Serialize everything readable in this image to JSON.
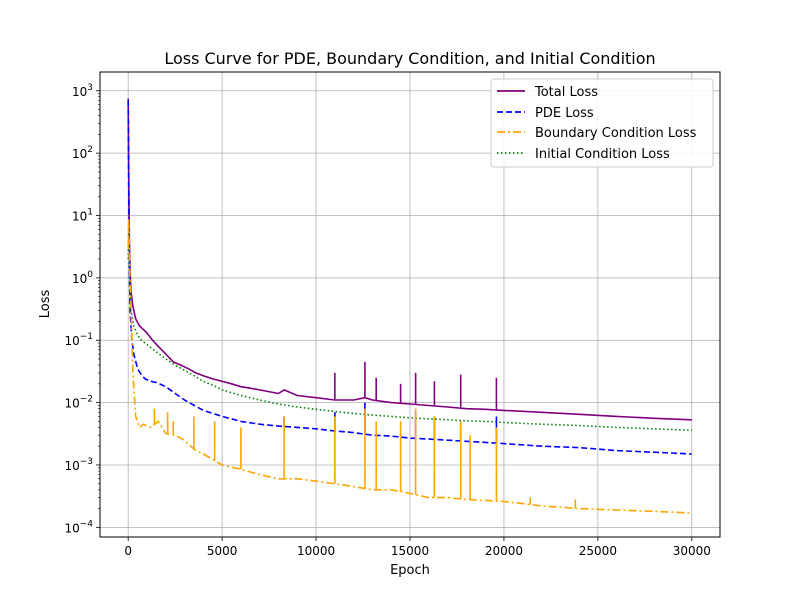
{
  "chart_data": {
    "type": "line",
    "title": "Loss Curve for PDE, Boundary Condition, and Initial Condition",
    "xlabel": "Epoch",
    "ylabel": "Loss",
    "xlim": [
      -1500,
      31500
    ],
    "ylim": [
      7e-05,
      2000
    ],
    "yscale": "log",
    "grid": true,
    "legend_position": "top-right",
    "x_ticks": [
      0,
      5000,
      10000,
      15000,
      20000,
      25000,
      30000
    ],
    "x_tick_labels": [
      "0",
      "5000",
      "10000",
      "15000",
      "20000",
      "25000",
      "30000"
    ],
    "y_ticks": [
      0.0001,
      0.001,
      0.01,
      0.1,
      1,
      10,
      100,
      1000
    ],
    "y_tick_labels": [
      {
        "base": "10",
        "exp": "−4"
      },
      {
        "base": "10",
        "exp": "−3"
      },
      {
        "base": "10",
        "exp": "−2"
      },
      {
        "base": "10",
        "exp": "−1"
      },
      {
        "base": "10",
        "exp": "0"
      },
      {
        "base": "10",
        "exp": "1"
      },
      {
        "base": "10",
        "exp": "2"
      },
      {
        "base": "10",
        "exp": "3"
      }
    ],
    "series": [
      {
        "name": "Total Loss",
        "color": "#800080",
        "style": "solid",
        "x": [
          0,
          30,
          60,
          100,
          150,
          250,
          400,
          600,
          800,
          1000,
          1300,
          1600,
          2000,
          2400,
          2800,
          3200,
          3600,
          4000,
          4500,
          5000,
          5500,
          6000,
          6500,
          7000,
          8000,
          8300,
          9000,
          10000,
          11000,
          12000,
          12600,
          13000,
          14000,
          15000,
          16000,
          17000,
          18000,
          19000,
          20000,
          22000,
          24000,
          26000,
          28000,
          30000
        ],
        "y": [
          750,
          50,
          5,
          1.2,
          0.6,
          0.35,
          0.22,
          0.17,
          0.15,
          0.13,
          0.1,
          0.08,
          0.06,
          0.045,
          0.04,
          0.035,
          0.03,
          0.027,
          0.024,
          0.022,
          0.02,
          0.018,
          0.017,
          0.016,
          0.014,
          0.016,
          0.013,
          0.012,
          0.011,
          0.011,
          0.012,
          0.011,
          0.01,
          0.0095,
          0.009,
          0.0085,
          0.008,
          0.0078,
          0.0075,
          0.007,
          0.0065,
          0.006,
          0.0056,
          0.0053
        ]
      },
      {
        "name": "PDE Loss",
        "color": "#0000ff",
        "style": "dashed",
        "x": [
          0,
          30,
          60,
          100,
          200,
          300,
          500,
          700,
          900,
          1200,
          1500,
          2000,
          2500,
          3000,
          4000,
          5000,
          6000,
          7000,
          8000,
          9000,
          10000,
          11000,
          12000,
          13000,
          14000,
          15000,
          16000,
          17000,
          18000,
          19000,
          20000,
          22000,
          24000,
          26000,
          28000,
          30000
        ],
        "y": [
          700,
          30,
          2,
          0.3,
          0.1,
          0.06,
          0.035,
          0.028,
          0.024,
          0.022,
          0.021,
          0.018,
          0.014,
          0.011,
          0.0075,
          0.006,
          0.005,
          0.0045,
          0.0042,
          0.004,
          0.0038,
          0.0035,
          0.0033,
          0.003,
          0.0029,
          0.0027,
          0.0026,
          0.0025,
          0.0024,
          0.0023,
          0.0022,
          0.002,
          0.0019,
          0.0017,
          0.0016,
          0.0015
        ]
      },
      {
        "name": "Boundary Condition Loss",
        "color": "#ffa500",
        "style": "dashdot",
        "x": [
          0,
          30,
          80,
          150,
          250,
          400,
          600,
          800,
          1200,
          1600,
          2000,
          2500,
          3000,
          3500,
          4000,
          5000,
          6000,
          7000,
          8000,
          9000,
          10000,
          11000,
          12000,
          13000,
          14000,
          15000,
          16000,
          17000,
          18000,
          19000,
          20000,
          21000,
          22000,
          23000,
          24000,
          26000,
          28000,
          30000
        ],
        "y": [
          3,
          9,
          1.2,
          0.35,
          0.03,
          0.006,
          0.004,
          0.0045,
          0.004,
          0.005,
          0.0032,
          0.003,
          0.0025,
          0.0018,
          0.0015,
          0.001,
          0.00085,
          0.0007,
          0.0006,
          0.0006,
          0.00055,
          0.0005,
          0.00045,
          0.0004,
          0.0004,
          0.00035,
          0.0003,
          0.0003,
          0.00028,
          0.00027,
          0.00026,
          0.00024,
          0.00022,
          0.00021,
          0.0002,
          0.00019,
          0.00018,
          0.00017
        ]
      },
      {
        "name": "Initial Condition Loss",
        "color": "#008000",
        "style": "dotted",
        "x": [
          0,
          30,
          80,
          150,
          300,
          500,
          700,
          1000,
          1500,
          2000,
          2500,
          3000,
          3500,
          4000,
          4500,
          5000,
          6000,
          7000,
          8000,
          9000,
          10000,
          11000,
          12000,
          13000,
          14000,
          15000,
          16000,
          17000,
          18000,
          19000,
          20000,
          22000,
          24000,
          26000,
          28000,
          30000
        ],
        "y": [
          2,
          5,
          0.6,
          0.3,
          0.17,
          0.12,
          0.1,
          0.085,
          0.065,
          0.05,
          0.04,
          0.033,
          0.027,
          0.022,
          0.019,
          0.016,
          0.013,
          0.011,
          0.0095,
          0.0085,
          0.0078,
          0.0072,
          0.0067,
          0.0063,
          0.006,
          0.0057,
          0.0055,
          0.0053,
          0.0051,
          0.005,
          0.0048,
          0.0045,
          0.0043,
          0.004,
          0.0038,
          0.0036
        ]
      }
    ],
    "spikes": [
      {
        "series": 0,
        "x": 8300,
        "peak": 0.016
      },
      {
        "series": 0,
        "x": 11000,
        "peak": 0.03
      },
      {
        "series": 0,
        "x": 12600,
        "peak": 0.045
      },
      {
        "series": 0,
        "x": 13200,
        "peak": 0.025
      },
      {
        "series": 0,
        "x": 14500,
        "peak": 0.02
      },
      {
        "series": 0,
        "x": 15300,
        "peak": 0.03
      },
      {
        "series": 0,
        "x": 16300,
        "peak": 0.022
      },
      {
        "series": 0,
        "x": 17700,
        "peak": 0.028
      },
      {
        "series": 0,
        "x": 19600,
        "peak": 0.025
      },
      {
        "series": 1,
        "x": 8300,
        "peak": 0.006
      },
      {
        "series": 1,
        "x": 11000,
        "peak": 0.007
      },
      {
        "series": 1,
        "x": 12600,
        "peak": 0.01
      },
      {
        "series": 1,
        "x": 15300,
        "peak": 0.007
      },
      {
        "series": 1,
        "x": 16300,
        "peak": 0.006
      },
      {
        "series": 1,
        "x": 17700,
        "peak": 0.005
      },
      {
        "series": 1,
        "x": 19600,
        "peak": 0.006
      },
      {
        "series": 2,
        "x": 1400,
        "peak": 0.008
      },
      {
        "series": 2,
        "x": 2100,
        "peak": 0.007
      },
      {
        "series": 2,
        "x": 2400,
        "peak": 0.005
      },
      {
        "series": 2,
        "x": 3500,
        "peak": 0.006
      },
      {
        "series": 2,
        "x": 4600,
        "peak": 0.005
      },
      {
        "series": 2,
        "x": 6000,
        "peak": 0.004
      },
      {
        "series": 2,
        "x": 8300,
        "peak": 0.006
      },
      {
        "series": 2,
        "x": 11000,
        "peak": 0.006
      },
      {
        "series": 2,
        "x": 12600,
        "peak": 0.008
      },
      {
        "series": 2,
        "x": 13200,
        "peak": 0.005
      },
      {
        "series": 2,
        "x": 14500,
        "peak": 0.005
      },
      {
        "series": 2,
        "x": 15300,
        "peak": 0.008
      },
      {
        "series": 2,
        "x": 16300,
        "peak": 0.006
      },
      {
        "series": 2,
        "x": 17700,
        "peak": 0.005
      },
      {
        "series": 2,
        "x": 18200,
        "peak": 0.003
      },
      {
        "series": 2,
        "x": 19600,
        "peak": 0.004
      },
      {
        "series": 2,
        "x": 21400,
        "peak": 0.0003
      },
      {
        "series": 2,
        "x": 23800,
        "peak": 0.00028
      }
    ]
  }
}
